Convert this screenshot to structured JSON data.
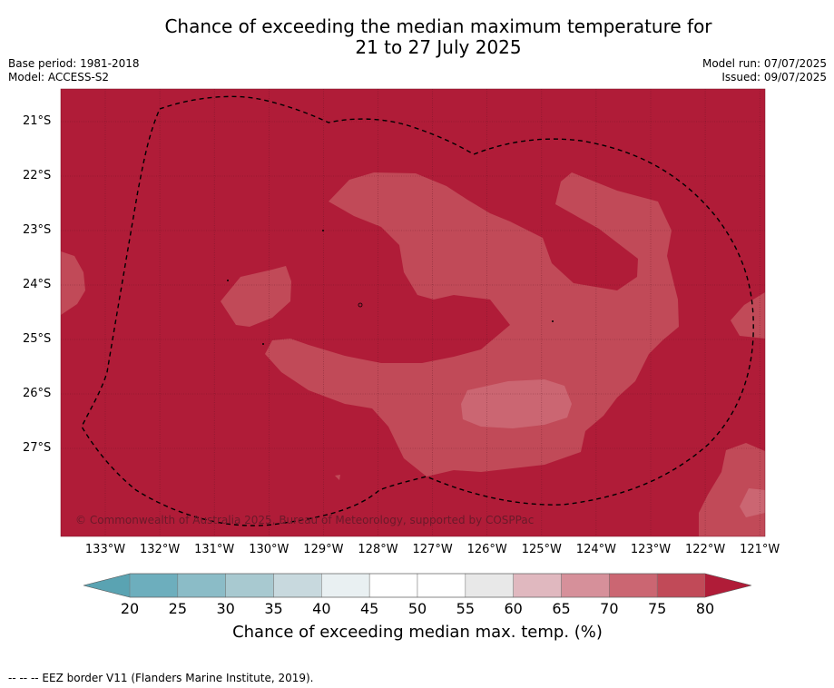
{
  "title": {
    "line1": "Chance of exceeding the median maximum temperature for",
    "line2": "21 to 27 July 2025"
  },
  "meta": {
    "base_period": "Base period: 1981-2018",
    "model": "Model: ACCESS-S2",
    "model_run": "Model run: 07/07/2025",
    "issued": "Issued: 09/07/2025"
  },
  "map": {
    "copyright": "© Commonwealth of Australia 2025, Bureau of Meteorology, supported by COSPPac",
    "lat_labels": [
      "21°S",
      "22°S",
      "23°S",
      "24°S",
      "25°S",
      "26°S",
      "27°S"
    ],
    "lon_labels": [
      "133°W",
      "132°W",
      "131°W",
      "130°W",
      "129°W",
      "128°W",
      "127°W",
      "126°W",
      "125°W",
      "124°W",
      "123°W",
      "122°W",
      "121°W"
    ],
    "colors": {
      "above_80": "#b01c38",
      "band_75_80": "#c14a58",
      "band_70_75": "#cb6672"
    }
  },
  "colorbar": {
    "title": "Chance of exceeding median max. temp. (%)",
    "ticks": [
      "20",
      "25",
      "30",
      "35",
      "40",
      "45",
      "50",
      "55",
      "60",
      "65",
      "70",
      "75",
      "80"
    ],
    "colors": [
      "#5aa3b2",
      "#6daebd",
      "#8bbcc7",
      "#a8c9d0",
      "#c8d9de",
      "#e9f0f2",
      "#ffffff",
      "#ffffff",
      "#e8e8e8",
      "#e0b8bf",
      "#d6909a",
      "#cb6672",
      "#c14a58",
      "#b01c38"
    ]
  },
  "footnote": "--  --  -- EEZ border V11 (Flanders Marine Institute, 2019)."
}
